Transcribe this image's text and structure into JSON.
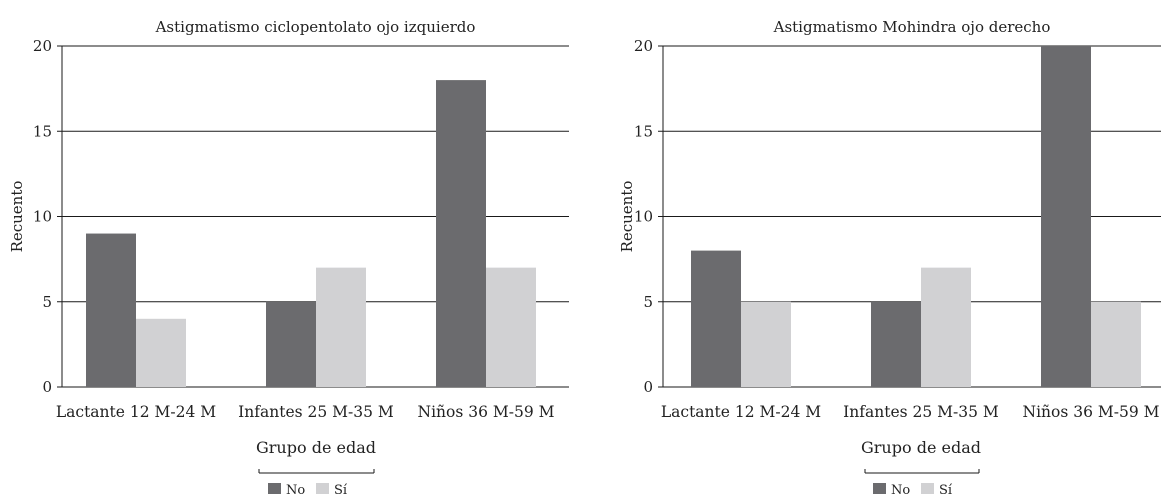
{
  "chart_data": [
    {
      "type": "bar",
      "title": "Astigmatismo ciclopentolato ojo izquierdo",
      "xlabel": "Grupo de edad",
      "ylabel": "Recuento",
      "categories": [
        "Lactante 12 M-24 M",
        "Infantes 25 M-35 M",
        "Niños 36 M-59 M"
      ],
      "series": [
        {
          "name": "No",
          "values": [
            9,
            5,
            18
          ],
          "color": "#6b6b6e"
        },
        {
          "name": "Sí",
          "values": [
            4,
            7,
            7
          ],
          "color": "#d1d1d3"
        }
      ],
      "ylim": [
        0,
        20
      ],
      "yticks": [
        "0",
        "5",
        "10",
        "15",
        "20"
      ],
      "grid": true,
      "legend_position": "bottom-center"
    },
    {
      "type": "bar",
      "title": "Astigmatismo Mohindra ojo derecho",
      "xlabel": "Grupo de edad",
      "ylabel": "Recuento",
      "categories": [
        "Lactante 12 M-24 M",
        "Infantes 25 M-35 M",
        "Niños 36 M-59 M"
      ],
      "series": [
        {
          "name": "No",
          "values": [
            8,
            5,
            20
          ],
          "color": "#6b6b6e"
        },
        {
          "name": "Sí",
          "values": [
            5,
            7,
            5
          ],
          "color": "#d1d1d3"
        }
      ],
      "ylim": [
        0,
        20
      ],
      "yticks": [
        "0",
        "5",
        "10",
        "15",
        "20"
      ],
      "grid": true,
      "legend_position": "bottom-center"
    }
  ]
}
